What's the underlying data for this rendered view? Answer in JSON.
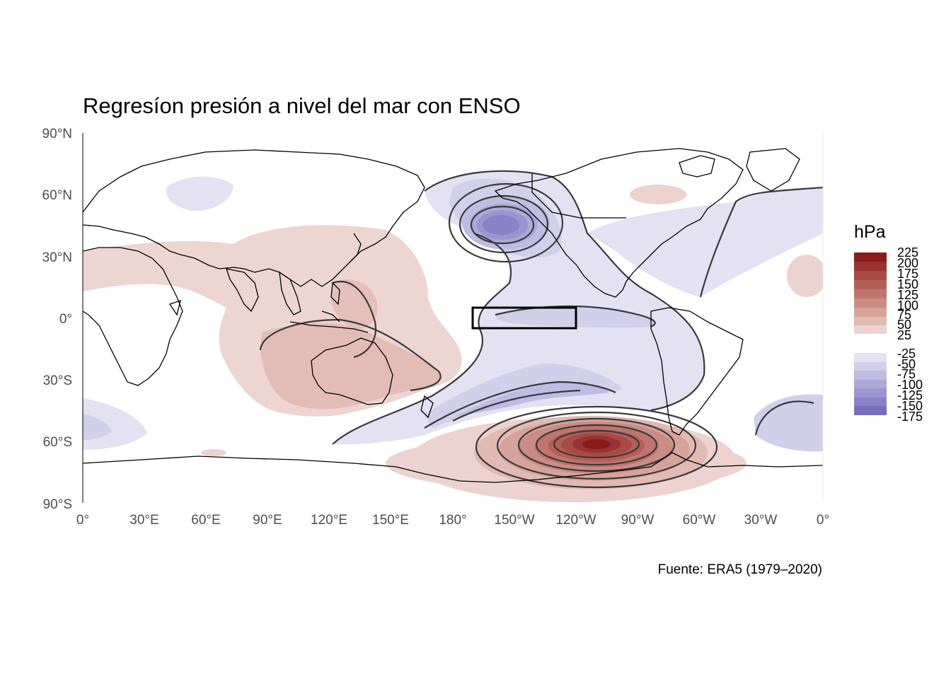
{
  "title": "Regresíon presión a nivel del mar con ENSO",
  "source": "Fuente: ERA5 (1979–2020)",
  "legend": {
    "title": "hPa",
    "positive": {
      "labels": [
        "225",
        "200",
        "175",
        "150",
        "125",
        "100",
        "75",
        "50",
        "25"
      ],
      "colors": [
        "#8b1a1a",
        "#993333",
        "#a84a45",
        "#b45f58",
        "#bf756d",
        "#cb8c84",
        "#d6a39b",
        "#e0bab3",
        "#ecd3cf"
      ]
    },
    "negative": {
      "labels": [
        "-25",
        "-50",
        "-75",
        "-100",
        "-125",
        "-150",
        "-175"
      ],
      "colors": [
        "#e3e1f2",
        "#d2cfea",
        "#c0bbe1",
        "#aea8d8",
        "#9c95cf",
        "#8a82c6",
        "#7870bd"
      ]
    }
  },
  "axes": {
    "x_ticks": [
      "0°",
      "30°E",
      "60°E",
      "90°E",
      "120°E",
      "150°E",
      "180°",
      "150°W",
      "120°W",
      "90°W",
      "60°W",
      "30°W",
      "0°"
    ],
    "y_ticks": [
      "90°N",
      "60°N",
      "30°N",
      "0°",
      "30°S",
      "60°S",
      "90°S"
    ]
  },
  "box_region": {
    "lon": [
      190,
      240
    ],
    "lat": [
      -5,
      5
    ]
  }
}
